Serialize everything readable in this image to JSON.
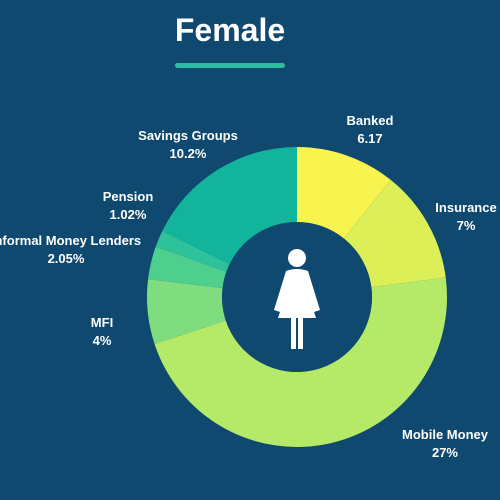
{
  "title": "Female",
  "colors": {
    "background": "#10496f",
    "accent": "#2bbf9f"
  },
  "icon": "female-person-icon",
  "chart_data": {
    "type": "pie",
    "title": "Female",
    "donut": true,
    "slices": [
      {
        "label": "Banked",
        "value_text": "6.17",
        "value": 6.17,
        "color": "#f7f34f"
      },
      {
        "label": "Insurance",
        "value_text": "7%",
        "value": 7,
        "color": "#dcef56"
      },
      {
        "label": "Mobile Money",
        "value_text": "27%",
        "value": 27,
        "color": "#b5ea69"
      },
      {
        "label": "MFI",
        "value_text": "4%",
        "value": 4,
        "color": "#7fdd80"
      },
      {
        "label": "Informal Money Lenders",
        "value_text": "2.05%",
        "value": 2.05,
        "color": "#4fcf8e"
      },
      {
        "label": "Pension",
        "value_text": "1.02%",
        "value": 1.02,
        "color": "#2ec29a"
      },
      {
        "label": "Savings Groups",
        "value_text": "10.2%",
        "value": 10.2,
        "color": "#12b59c"
      }
    ]
  }
}
